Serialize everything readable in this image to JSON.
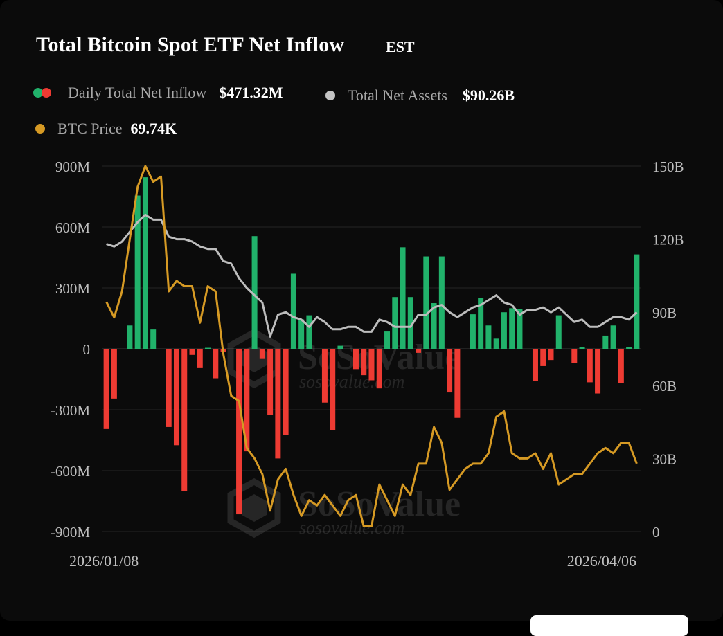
{
  "header": {
    "title": "Total Bitcoin Spot ETF Net Inflow",
    "timezone": "EST"
  },
  "legend": {
    "inflow_label": "Daily Total Net Inflow",
    "inflow_value": "$471.32M",
    "assets_label": "Total Net Assets",
    "assets_value": "$90.26B",
    "price_label": "BTC Price",
    "price_value": "69.74K"
  },
  "colors": {
    "positive": "#21b26b",
    "negative": "#ee3b33",
    "assets_line": "#bdbdbd",
    "price_line": "#d69a24",
    "background": "#0b0b0b",
    "gridline": "#262626"
  },
  "watermark": {
    "brand": "SoSoValue",
    "site": "sosovalue.com"
  },
  "chart_data": {
    "type": "bar",
    "x_start": "2026/01/08",
    "x_end": "2026/04/06",
    "left_axis": {
      "ticks": [
        "900M",
        "600M",
        "300M",
        "0",
        "-300M",
        "-600M",
        "-900M"
      ],
      "range": [
        -900,
        900
      ],
      "unit": "M"
    },
    "right_axis": {
      "ticks": [
        "150B",
        "120B",
        "90B",
        "60B",
        "30B",
        "0"
      ],
      "range": [
        0,
        150
      ],
      "unit": "B"
    },
    "series": [
      {
        "name": "Daily Total Net Inflow",
        "type": "bar",
        "unit": "M",
        "values": [
          -395,
          -245,
          0,
          115,
          755,
          845,
          95,
          0,
          -385,
          -475,
          -700,
          -30,
          -95,
          5,
          -145,
          -15,
          0,
          -815,
          -505,
          555,
          -50,
          -325,
          -540,
          -425,
          370,
          145,
          165,
          0,
          -265,
          -400,
          15,
          0,
          -100,
          -130,
          -155,
          -195,
          85,
          255,
          500,
          255,
          -20,
          455,
          225,
          455,
          -215,
          -340,
          0,
          170,
          250,
          115,
          50,
          180,
          200,
          195,
          0,
          -160,
          -85,
          -55,
          165,
          0,
          -70,
          10,
          -165,
          -220,
          65,
          115,
          -170,
          10,
          465
        ]
      },
      {
        "name": "Total Net Assets",
        "type": "line",
        "unit": "B",
        "values": [
          118,
          117,
          119,
          123,
          127,
          130,
          128,
          128,
          121,
          120,
          120,
          119,
          117,
          116,
          116,
          111,
          110,
          104,
          100,
          97,
          94,
          80,
          89,
          90,
          88,
          87,
          84,
          88,
          86,
          83,
          83,
          84,
          84,
          82,
          82,
          87,
          86,
          84,
          84,
          84,
          89,
          89,
          92,
          93,
          90,
          88,
          90,
          92,
          93,
          95,
          97,
          94,
          93,
          89,
          91,
          91,
          92,
          90,
          92,
          89,
          86,
          87,
          84,
          84,
          86,
          88,
          88,
          87,
          90
        ]
      },
      {
        "name": "BTC Price",
        "type": "line",
        "unit": "K",
        "values": [
          101,
          98,
          103,
          113,
          123,
          127,
          124,
          125,
          103,
          105,
          104,
          104,
          97,
          104,
          103,
          91,
          83,
          82,
          73,
          71,
          68,
          61,
          67,
          69,
          64,
          60,
          63,
          62,
          64,
          62,
          60,
          63,
          64,
          58,
          58,
          66,
          63,
          60,
          66,
          64,
          70,
          70,
          77,
          74,
          65,
          67,
          69,
          70,
          70,
          72,
          79,
          80,
          72,
          71,
          71,
          72,
          69,
          72,
          66,
          67,
          68,
          68,
          70,
          72,
          73,
          72,
          74,
          74,
          70
        ]
      }
    ],
    "price_range": [
      57,
      127
    ]
  }
}
